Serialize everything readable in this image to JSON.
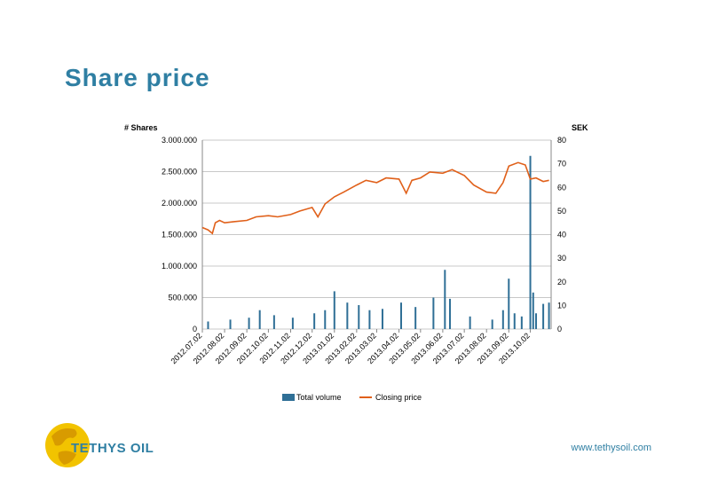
{
  "page": {
    "title": "Share price",
    "url": "www.tethysoil.com",
    "logo_text": "TETHYS OIL"
  },
  "colors": {
    "title": "#2f7fa3",
    "volume": "#2f6f96",
    "price": "#e0601a",
    "grid": "#c8c8c8"
  },
  "chart_data": {
    "type": "bar+line",
    "y_left_label": "# Shares",
    "y_right_label": "SEK",
    "y_left_range": [
      0,
      3000000
    ],
    "y_right_range": [
      0,
      80
    ],
    "y_left_ticks": [
      "0",
      "500.000",
      "1.000.000",
      "1.500.000",
      "2.000.000",
      "2.500.000",
      "3.000.000"
    ],
    "y_right_ticks": [
      "0",
      "10",
      "20",
      "30",
      "40",
      "50",
      "60",
      "70",
      "80"
    ],
    "x_tick_labels": [
      "2012.07.02",
      "2012.08.02",
      "2012.09.02",
      "2012.10.02",
      "2012.11.02",
      "2012.12.02",
      "2013.01.02",
      "2013.02.02",
      "2013.03.02",
      "2013.04.02",
      "2013.05.02",
      "2013.06.02",
      "2013.07.02",
      "2013.08.02",
      "2013.09.02",
      "2013.10.02"
    ],
    "legend": [
      "Total volume",
      "Closing price"
    ],
    "legend_position": "bottom",
    "grid": true,
    "series": [
      {
        "name": "Closing price",
        "axis": "right",
        "x": [
          "2012.07.02",
          "2012.07.10",
          "2012.07.16",
          "2012.07.20",
          "2012.07.26",
          "2012.08.02",
          "2012.08.15",
          "2012.09.02",
          "2012.09.15",
          "2012.10.02",
          "2012.10.15",
          "2012.11.02",
          "2012.11.15",
          "2012.12.02",
          "2012.12.10",
          "2012.12.20",
          "2013.01.02",
          "2013.01.15",
          "2013.02.02",
          "2013.02.15",
          "2013.03.02",
          "2013.03.15",
          "2013.04.02",
          "2013.04.12",
          "2013.04.20",
          "2013.05.02",
          "2013.05.15",
          "2013.06.02",
          "2013.06.15",
          "2013.07.02",
          "2013.07.15",
          "2013.08.02",
          "2013.08.15",
          "2013.08.25",
          "2013.09.02",
          "2013.09.15",
          "2013.09.25",
          "2013.10.02",
          "2013.10.10",
          "2013.10.20",
          "2013.10.28"
        ],
        "values": [
          43.0,
          42.0,
          40.5,
          45.0,
          46.0,
          45.0,
          45.5,
          46.0,
          47.5,
          48.0,
          47.5,
          48.5,
          50.0,
          51.5,
          47.5,
          53.0,
          56.0,
          58.0,
          61.0,
          63.0,
          62.0,
          64.0,
          63.5,
          57.5,
          63.0,
          64.0,
          66.5,
          66.0,
          67.5,
          65.0,
          61.0,
          58.0,
          57.5,
          62.0,
          69.0,
          70.5,
          69.5,
          63.5,
          64.0,
          62.5,
          63.0
        ]
      },
      {
        "name": "Total volume",
        "axis": "left",
        "x": [
          "2012.07.10",
          "2012.08.10",
          "2012.09.05",
          "2012.09.20",
          "2012.10.10",
          "2012.11.05",
          "2012.12.05",
          "2012.12.20",
          "2013.01.02",
          "2013.01.20",
          "2013.02.05",
          "2013.02.20",
          "2013.03.10",
          "2013.04.05",
          "2013.04.25",
          "2013.05.20",
          "2013.06.05",
          "2013.06.12",
          "2013.07.10",
          "2013.08.10",
          "2013.08.25",
          "2013.09.02",
          "2013.09.10",
          "2013.09.20",
          "2013.10.02",
          "2013.10.06",
          "2013.10.10",
          "2013.10.20",
          "2013.10.28"
        ],
        "values": [
          120000,
          150000,
          180000,
          300000,
          220000,
          180000,
          250000,
          300000,
          600000,
          420000,
          380000,
          300000,
          320000,
          420000,
          350000,
          500000,
          940000,
          480000,
          200000,
          150000,
          300000,
          800000,
          250000,
          200000,
          2750000,
          580000,
          250000,
          400000,
          420000
        ]
      }
    ]
  }
}
